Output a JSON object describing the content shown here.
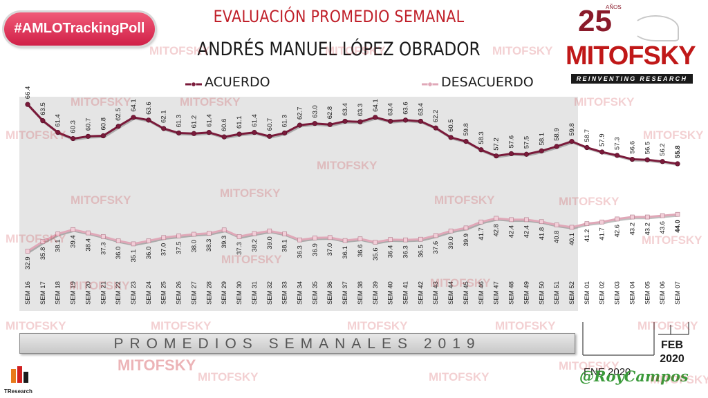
{
  "hashtag": "#AMLOTrackingPoll",
  "title": "EVALUACIÓN PROMEDIO SEMANAL",
  "subtitle": "ANDRÉS MANUEL LÓPEZ OBRADOR",
  "logo": {
    "number": "25",
    "anos": "AÑOS",
    "name": "MITOFSKY",
    "tagline": "REINVENTING RESEARCH"
  },
  "watermark": "MITOFSKY",
  "footer": {
    "period_2019": "PROMEDIOS SEMANALES 2019",
    "ene": "ENE 2020",
    "feb_line1": "FEB",
    "feb_line2": "2020",
    "signature": "@RoyCampos",
    "tresearch": "TResearch"
  },
  "colors": {
    "acuerdo": "#7a1a3a",
    "desacuerdo": "#e0a8b8",
    "title_red": "#c0202a"
  },
  "chart_data": {
    "type": "line",
    "categories": [
      "SEM 16",
      "SEM 17",
      "SEM 18",
      "SEM 19",
      "SEM 20",
      "SEM 21",
      "SEM 22",
      "SEM 23",
      "SEM 24",
      "SEM 25",
      "SEM 26",
      "SEM 27",
      "SEM 28",
      "SEM 29",
      "SEM 30",
      "SEM 31",
      "SEM 32",
      "SEM 33",
      "SEM 34",
      "SEM 35",
      "SEM 36",
      "SEM 37",
      "SEM 38",
      "SEM 39",
      "SEM 40",
      "SEM 41",
      "SEM 42",
      "SEM 43",
      "SEM 44",
      "SEM 45",
      "SEM 46",
      "SEM 47",
      "SEM 48",
      "SEM 49",
      "SEM 50",
      "SEM 51",
      "SEM 52",
      "SEM 01",
      "SEM 02",
      "SEM 03",
      "SEM 04",
      "SEM 05",
      "SEM 06",
      "SEM 07"
    ],
    "series": [
      {
        "name": "ACUERDO",
        "values": [
          66.4,
          63.5,
          61.4,
          60.3,
          60.7,
          60.8,
          62.5,
          64.1,
          63.6,
          62.1,
          61.3,
          61.2,
          61.4,
          60.6,
          61.1,
          61.4,
          60.7,
          61.3,
          62.7,
          63.0,
          62.8,
          63.4,
          63.3,
          64.1,
          63.4,
          63.6,
          63.4,
          62.2,
          60.5,
          59.8,
          58.3,
          57.2,
          57.6,
          57.5,
          58.1,
          58.9,
          59.8,
          58.7,
          57.9,
          57.3,
          56.6,
          56.5,
          56.2,
          55.8
        ]
      },
      {
        "name": "DESACUERDO",
        "values": [
          32.9,
          35.8,
          38.1,
          39.4,
          38.4,
          37.3,
          36.0,
          35.1,
          36.0,
          37.0,
          37.5,
          38.0,
          38.3,
          39.3,
          37.3,
          38.2,
          39.0,
          38.1,
          36.3,
          36.9,
          37.0,
          36.1,
          36.6,
          35.6,
          36.4,
          36.3,
          36.5,
          37.6,
          39.0,
          39.9,
          41.7,
          42.8,
          42.4,
          42.4,
          41.8,
          40.8,
          40.1,
          41.2,
          41.7,
          42.6,
          43.2,
          43.2,
          43.6,
          44.0
        ]
      }
    ],
    "highlighted_last_labels": true,
    "legend": "top",
    "grid": false
  }
}
